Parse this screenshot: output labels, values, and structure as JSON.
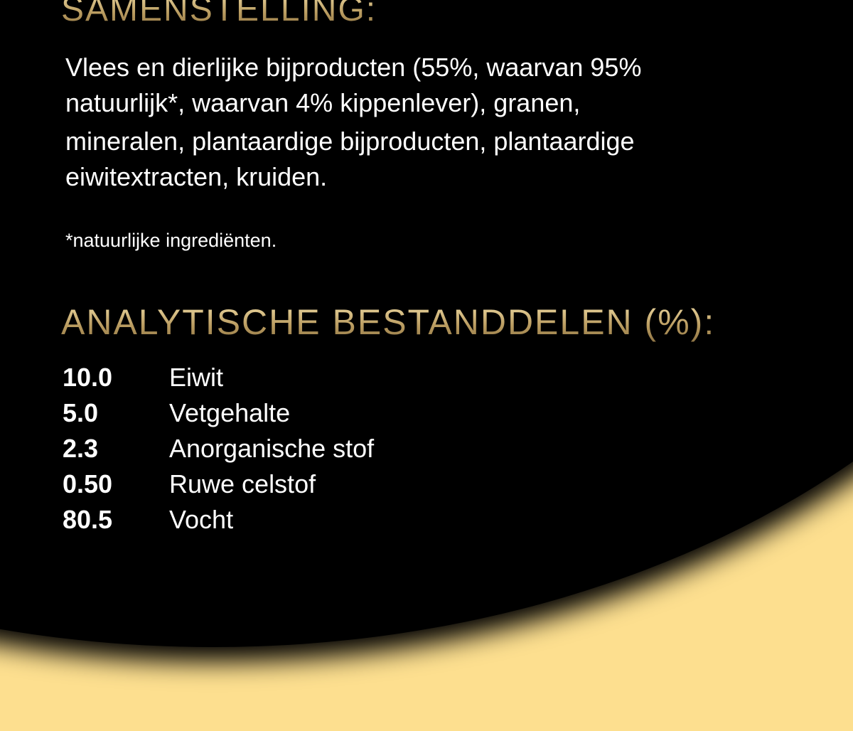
{
  "colors": {
    "background": "#fddf8f",
    "panel": "#000000",
    "heading_gold": "#c9ab6e",
    "text": "#ffffff"
  },
  "composition": {
    "heading": "SAMENSTELLING:",
    "lines": [
      "Vlees en dierlijke bijproducten (55%, waarvan 95%",
      "natuurlijk*, waarvan 4% kippenlever), granen,",
      "mineralen, plantaardige bijproducten, plantaardige",
      "eiwitextracten, kruiden."
    ],
    "footnote": "*natuurlijke ingrediënten."
  },
  "analysis": {
    "heading": "ANALYTISCHE BESTANDDELEN (%):",
    "rows": [
      {
        "value": "10.0",
        "label": "Eiwit"
      },
      {
        "value": "5.0",
        "label": "Vetgehalte"
      },
      {
        "value": "2.3",
        "label": "Anorganische stof"
      },
      {
        "value": "0.50",
        "label": "Ruwe celstof"
      },
      {
        "value": "80.5",
        "label": "Vocht"
      }
    ]
  }
}
